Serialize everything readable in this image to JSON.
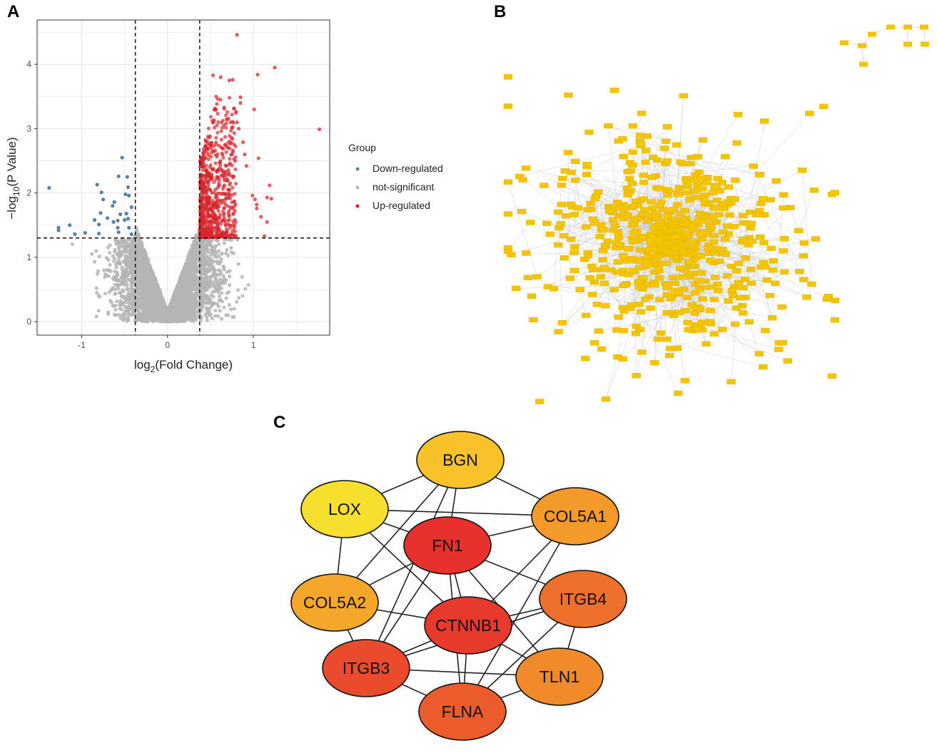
{
  "panels": {
    "a": "A",
    "b": "B",
    "c": "C"
  },
  "colors": {
    "down": "#5b7fa8",
    "ns": "#b5b5b5",
    "up": "#d7262c",
    "grid": "#e6e6e6",
    "network_node": "#f2c500",
    "network_edge": "#c8c8c8"
  },
  "chart_data": [
    {
      "type": "scatter",
      "name": "volcano",
      "xlabel_parts": [
        "log",
        "2",
        "(Fold Change)"
      ],
      "ylabel_parts": [
        "−log",
        "10",
        "(P Value)"
      ],
      "xlim": [
        -1.52,
        1.89
      ],
      "ylim": [
        -0.21,
        4.69
      ],
      "xticks": [
        -1,
        0,
        1
      ],
      "yticks": [
        0,
        1,
        2,
        3,
        4
      ],
      "grid": true,
      "thresholds": {
        "x": [
          -0.375,
          0.375
        ],
        "y": 1.3
      },
      "legend": {
        "title": "Group",
        "position": "right",
        "entries": [
          {
            "label": "Down-regulated",
            "key": "down"
          },
          {
            "label": "not-significant",
            "key": "ns"
          },
          {
            "label": "Up-regulated",
            "key": "up"
          }
        ]
      },
      "series": {
        "down": [
          [
            -1.38,
            2.08
          ],
          [
            -0.53,
            2.55
          ],
          [
            -0.57,
            2.26
          ],
          [
            -0.47,
            2.25
          ],
          [
            -0.82,
            2.13
          ],
          [
            -0.46,
            2.09
          ],
          [
            -0.77,
            2.01
          ],
          [
            -0.49,
            1.98
          ],
          [
            -0.45,
            1.96
          ],
          [
            -0.75,
            1.9
          ],
          [
            -0.62,
            1.86
          ],
          [
            -0.64,
            1.8
          ],
          [
            -0.42,
            1.78
          ],
          [
            -0.78,
            1.69
          ],
          [
            -0.55,
            1.67
          ],
          [
            -0.48,
            1.68
          ],
          [
            -0.7,
            1.61
          ],
          [
            -0.46,
            1.6
          ],
          [
            -0.85,
            1.58
          ],
          [
            -0.58,
            1.57
          ],
          [
            -0.5,
            1.58
          ],
          [
            -0.63,
            1.55
          ],
          [
            -0.8,
            1.51
          ],
          [
            -1.14,
            1.5
          ],
          [
            -1.27,
            1.46
          ],
          [
            -1.27,
            1.42
          ],
          [
            -0.58,
            1.46
          ],
          [
            -0.45,
            1.46
          ],
          [
            -0.96,
            1.38
          ],
          [
            -1.08,
            1.36
          ],
          [
            -0.8,
            1.37
          ],
          [
            -0.57,
            1.39
          ],
          [
            -0.42,
            1.36
          ]
        ],
        "up_outliers": [
          [
            0.81,
            4.46
          ],
          [
            1.25,
            3.95
          ],
          [
            1.77,
            2.99
          ],
          [
            1.05,
            3.84
          ],
          [
            0.53,
            3.83
          ],
          [
            0.62,
            3.8
          ],
          [
            0.72,
            3.75
          ],
          [
            0.76,
            3.76
          ],
          [
            0.85,
            3.49
          ],
          [
            0.85,
            3.4
          ],
          [
            1.01,
            3.3
          ],
          [
            1.06,
            2.54
          ],
          [
            0.9,
            2.6
          ],
          [
            0.92,
            2.42
          ],
          [
            1.19,
            2.12
          ],
          [
            1.16,
            1.93
          ],
          [
            1.21,
            1.91
          ],
          [
            0.99,
            1.96
          ],
          [
            1.02,
            1.9
          ],
          [
            1.04,
            1.82
          ],
          [
            1.04,
            1.76
          ],
          [
            1.09,
            1.63
          ],
          [
            1.16,
            1.55
          ],
          [
            1.13,
            1.33
          ],
          [
            0.88,
            2.79
          ],
          [
            0.83,
            3.0
          ],
          [
            0.81,
            3.1
          ]
        ],
        "up_dense": {
          "x_range": [
            0.38,
            0.8
          ],
          "y_range": [
            1.31,
            3.5
          ],
          "count": 700
        },
        "ns_count": 4500
      }
    },
    {
      "type": "network",
      "name": "ppi-network",
      "node_count": 700,
      "small_component_count": 9
    },
    {
      "type": "network",
      "name": "hub-genes",
      "nodes": [
        {
          "id": "BGN",
          "color": "#f9c22a"
        },
        {
          "id": "LOX",
          "color": "#f7df2e"
        },
        {
          "id": "COL5A1",
          "color": "#f39a2b"
        },
        {
          "id": "FN1",
          "color": "#e8302c"
        },
        {
          "id": "COL5A2",
          "color": "#f5a72b"
        },
        {
          "id": "ITGB4",
          "color": "#ef702a"
        },
        {
          "id": "CTNNB1",
          "color": "#e83a2c"
        },
        {
          "id": "ITGB3",
          "color": "#ea4b2c"
        },
        {
          "id": "TLN1",
          "color": "#f08a2a"
        },
        {
          "id": "FLNA",
          "color": "#ec5b2c"
        }
      ],
      "edges": [
        [
          "BGN",
          "LOX"
        ],
        [
          "BGN",
          "COL5A1"
        ],
        [
          "BGN",
          "FN1"
        ],
        [
          "BGN",
          "COL5A2"
        ],
        [
          "BGN",
          "ITGB3"
        ],
        [
          "LOX",
          "COL5A1"
        ],
        [
          "LOX",
          "FN1"
        ],
        [
          "LOX",
          "CTNNB1"
        ],
        [
          "LOX",
          "COL5A2"
        ],
        [
          "COL5A1",
          "FN1"
        ],
        [
          "COL5A1",
          "CTNNB1"
        ],
        [
          "COL5A1",
          "FLNA"
        ],
        [
          "FN1",
          "COL5A2"
        ],
        [
          "FN1",
          "CTNNB1"
        ],
        [
          "FN1",
          "ITGB4"
        ],
        [
          "FN1",
          "ITGB3"
        ],
        [
          "FN1",
          "FLNA"
        ],
        [
          "FN1",
          "TLN1"
        ],
        [
          "COL5A2",
          "ITGB3"
        ],
        [
          "COL5A2",
          "CTNNB1"
        ],
        [
          "CTNNB1",
          "ITGB3"
        ],
        [
          "CTNNB1",
          "ITGB4"
        ],
        [
          "CTNNB1",
          "FLNA"
        ],
        [
          "CTNNB1",
          "TLN1"
        ],
        [
          "ITGB3",
          "TLN1"
        ],
        [
          "ITGB3",
          "FLNA"
        ],
        [
          "ITGB3",
          "ITGB4"
        ],
        [
          "ITGB4",
          "TLN1"
        ],
        [
          "ITGB4",
          "FLNA"
        ],
        [
          "TLN1",
          "FLNA"
        ]
      ]
    }
  ]
}
